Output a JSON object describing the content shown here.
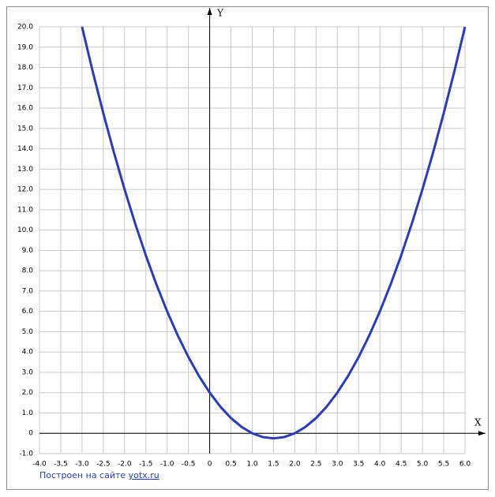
{
  "chart_data": {
    "type": "line",
    "x_label": "X",
    "y_label": "Y",
    "x": [
      -3,
      -2.75,
      -2.5,
      -2.25,
      -2,
      -1.75,
      -1.5,
      -1.25,
      -1,
      -0.75,
      -0.5,
      -0.25,
      0,
      0.25,
      0.5,
      0.75,
      1,
      1.25,
      1.5,
      1.75,
      2,
      2.25,
      2.5,
      2.75,
      3,
      3.25,
      3.5,
      3.75,
      4,
      4.25,
      4.5,
      4.75,
      5,
      5.25,
      5.5,
      5.75,
      6
    ],
    "series": [
      {
        "color": "#2a3cbc",
        "values": [
          20,
          17.8125,
          15.75,
          13.8125,
          12,
          10.3125,
          8.75,
          7.3125,
          6,
          4.8125,
          3.75,
          2.8125,
          2,
          1.3125,
          0.75,
          0.3125,
          0,
          -0.1875,
          -0.25,
          -0.1875,
          0,
          0.3125,
          0.75,
          1.3125,
          2,
          2.8125,
          3.75,
          4.8125,
          6,
          7.3125,
          8.75,
          10.3125,
          12,
          13.8125,
          15.75,
          17.8125,
          20
        ]
      }
    ],
    "xlim": [
      -4,
      6
    ],
    "ylim": [
      -1,
      20
    ],
    "xticks": [
      {
        "value": -4,
        "label": "-4.0"
      },
      {
        "value": -3.5,
        "label": "-3.5"
      },
      {
        "value": -3,
        "label": "-3.0"
      },
      {
        "value": -2.5,
        "label": "-2.5"
      },
      {
        "value": -2,
        "label": "-2.0"
      },
      {
        "value": -1.5,
        "label": "-1.5"
      },
      {
        "value": -1,
        "label": "-1.0"
      },
      {
        "value": -0.5,
        "label": "-0.5"
      },
      0,
      0.5,
      {
        "value": 1,
        "label": "1.0"
      },
      1.5,
      {
        "value": 2,
        "label": "2.0"
      },
      2.5,
      {
        "value": 3,
        "label": "3.0"
      },
      3.5,
      {
        "value": 4,
        "label": "4.0"
      },
      4.5,
      {
        "value": 5,
        "label": "5.0"
      },
      5.5,
      {
        "value": 6,
        "label": "6.0"
      }
    ],
    "yticks": [
      {
        "value": -1,
        "label": "-1.0"
      },
      0,
      {
        "value": 1,
        "label": "1.0"
      },
      {
        "value": 2,
        "label": "2.0"
      },
      {
        "value": 3,
        "label": "3.0"
      },
      {
        "value": 4,
        "label": "4.0"
      },
      {
        "value": 5,
        "label": "5.0"
      },
      {
        "value": 6,
        "label": "6.0"
      },
      {
        "value": 7,
        "label": "7.0"
      },
      {
        "value": 8,
        "label": "8.0"
      },
      {
        "value": 9,
        "label": "9.0"
      },
      {
        "value": 10,
        "label": "10.0"
      },
      {
        "value": 11,
        "label": "11.0"
      },
      {
        "value": 12,
        "label": "12.0"
      },
      {
        "value": 13,
        "label": "13.0"
      },
      {
        "value": 14,
        "label": "14.0"
      },
      {
        "value": 15,
        "label": "15.0"
      },
      {
        "value": 16,
        "label": "16.0"
      },
      {
        "value": 17,
        "label": "17.0"
      },
      {
        "value": 18,
        "label": "18.0"
      },
      {
        "value": 19,
        "label": "19.0"
      },
      {
        "value": 20,
        "label": "20.0"
      }
    ],
    "grid": true
  },
  "footer": {
    "text": "Построен на сайте",
    "link": "yotx.ru"
  }
}
